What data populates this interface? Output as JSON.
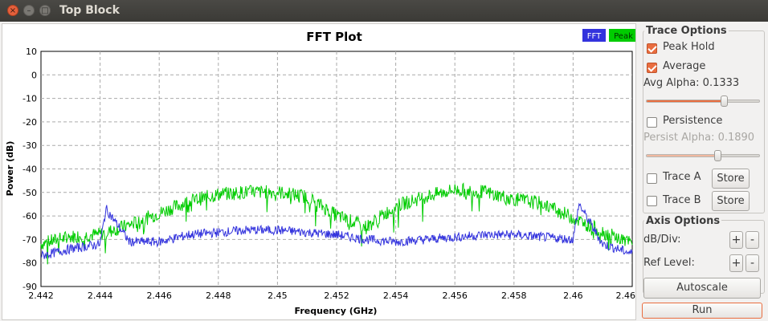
{
  "window": {
    "title": "Top Block",
    "close_glyph": "×",
    "min_glyph": "–",
    "max_glyph": "□"
  },
  "plot": {
    "title": "FFT Plot",
    "legend": [
      {
        "label": "FFT",
        "color": "#3333dd"
      },
      {
        "label": "Peak",
        "color": "#00cc00"
      }
    ],
    "xlabel": "Frequency (GHz)",
    "ylabel": "Power (dB)",
    "yticks": [
      "10",
      "0",
      "-10",
      "-20",
      "-30",
      "-40",
      "-50",
      "-60",
      "-70",
      "-80",
      "-90"
    ],
    "xticks": [
      "2.442",
      "2.444",
      "2.446",
      "2.448",
      "2.45",
      "2.452",
      "2.454",
      "2.456",
      "2.458",
      "2.46",
      "2.46"
    ]
  },
  "chart_data": {
    "type": "line",
    "title": "FFT Plot",
    "xlabel": "Frequency (GHz)",
    "ylabel": "Power (dB)",
    "xlim": [
      2.442,
      2.462
    ],
    "ylim": [
      -90,
      10
    ],
    "grid": true,
    "legend_position": "top-right",
    "series": [
      {
        "name": "FFT",
        "color": "#3333dd",
        "x": [
          2.442,
          2.443,
          2.444,
          2.4442,
          2.445,
          2.446,
          2.447,
          2.448,
          2.449,
          2.45,
          2.451,
          2.452,
          2.453,
          2.454,
          2.455,
          2.456,
          2.457,
          2.458,
          2.459,
          2.46,
          2.4602,
          2.461,
          2.462
        ],
        "y": [
          -77,
          -74,
          -72,
          -57,
          -71,
          -71,
          -68,
          -67,
          -66,
          -66,
          -67,
          -68,
          -70,
          -71,
          -70,
          -69,
          -68,
          -68,
          -69,
          -70,
          -55,
          -72,
          -76
        ]
      },
      {
        "name": "Peak",
        "color": "#00cc00",
        "x": [
          2.442,
          2.443,
          2.444,
          2.445,
          2.446,
          2.447,
          2.448,
          2.449,
          2.45,
          2.451,
          2.452,
          2.453,
          2.454,
          2.455,
          2.456,
          2.457,
          2.458,
          2.459,
          2.46,
          2.461,
          2.462
        ],
        "y": [
          -73,
          -70,
          -69,
          -65,
          -60,
          -55,
          -52,
          -51,
          -51,
          -53,
          -61,
          -66,
          -57,
          -53,
          -50,
          -51,
          -54,
          -56,
          -62,
          -68,
          -73
        ]
      }
    ]
  },
  "trace_options": {
    "title": "Trace Options",
    "peak_hold": {
      "label": "Peak Hold",
      "checked": true
    },
    "average": {
      "label": "Average",
      "checked": true
    },
    "avg_alpha_label": "Avg Alpha: 0.1333",
    "avg_alpha_value": 0.68,
    "persistence": {
      "label": "Persistence",
      "checked": false
    },
    "persist_alpha_label": "Persist Alpha: 0.1890",
    "persist_alpha_value": 0.62,
    "trace_a": {
      "label": "Trace A",
      "store": "Store"
    },
    "trace_b": {
      "label": "Trace B",
      "store": "Store"
    }
  },
  "axis_options": {
    "title": "Axis Options",
    "db_div_label": "dB/Div:",
    "ref_level_label": "Ref Level:",
    "plus": "+",
    "minus": "-",
    "autoscale": "Autoscale",
    "run": "Run"
  }
}
